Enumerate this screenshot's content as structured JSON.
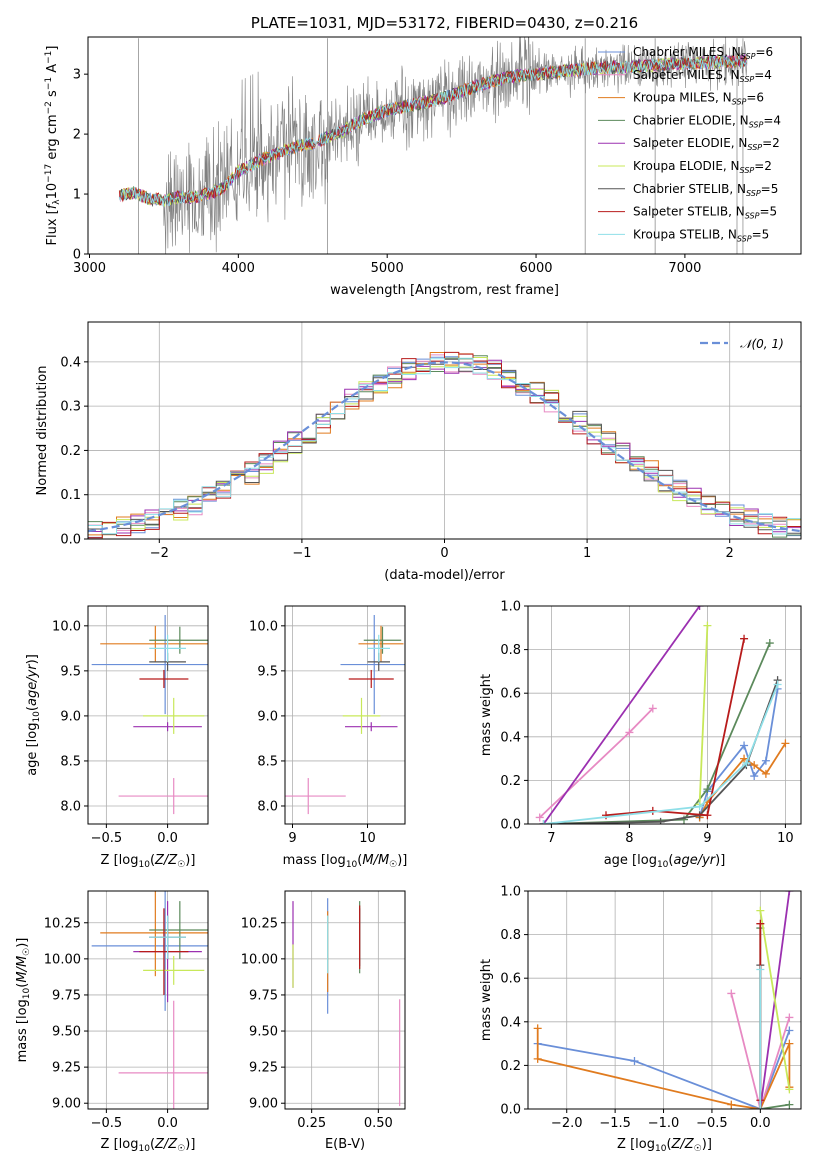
{
  "palette": {
    "Chabrier MILES": "#6a8fd8",
    "Salpeter MILES": "#e78ac3",
    "Kroupa MILES": "#e07b1f",
    "Chabrier ELODIE": "#5c8a5c",
    "Salpeter ELODIE": "#9b30b0",
    "Kroupa ELODIE": "#c8e85a",
    "Chabrier STELIB": "#555555",
    "Salpeter STELIB": "#b81b1b",
    "Kroupa STELIB": "#8fdfe8",
    "observed": "#808080",
    "normal": "#6a8fd8"
  },
  "chart_data": [
    {
      "id": "spectrum",
      "type": "line",
      "title": "PLATE=1031, MJD=53172, FIBERID=0430, z=0.216",
      "xlabel": "wavelength [Angstrom, rest frame]",
      "ylabel": "Flux [f_λ 10^-17 erg cm^-2 s^-1 A^-1]",
      "xlim": [
        2990,
        7780
      ],
      "ylim": [
        0,
        3.62
      ],
      "xticks": [
        3000,
        4000,
        5000,
        6000,
        7000
      ],
      "yticks": [
        0,
        1,
        2,
        3
      ],
      "legend_position": "upper right",
      "legend": [
        {
          "label": "Chabrier MILES, N",
          "sub": "SSP",
          "tail": "=6"
        },
        {
          "label": "Salpeter MILES, N",
          "sub": "SSP",
          "tail": "=4"
        },
        {
          "label": "Kroupa MILES, N",
          "sub": "SSP",
          "tail": "=6"
        },
        {
          "label": "Chabrier ELODIE, N",
          "sub": "SSP",
          "tail": "=4"
        },
        {
          "label": "Salpeter ELODIE, N",
          "sub": "SSP",
          "tail": "=2"
        },
        {
          "label": "Kroupa ELODIE, N",
          "sub": "SSP",
          "tail": "=2"
        },
        {
          "label": "Chabrier STELIB, N",
          "sub": "SSP",
          "tail": "=5"
        },
        {
          "label": "Salpeter STELIB, N",
          "sub": "SSP",
          "tail": "=5"
        },
        {
          "label": "Kroupa STELIB, N",
          "sub": "SSP",
          "tail": "=5"
        }
      ],
      "continuum": {
        "x": [
          3200,
          3300,
          3400,
          3500,
          3600,
          3700,
          3800,
          3900,
          4000,
          4100,
          4200,
          4300,
          4400,
          4500,
          4600,
          4700,
          4800,
          4900,
          5000,
          5200,
          5400,
          5600,
          5800,
          6000,
          6200,
          6400,
          6600,
          6800,
          7000,
          7200,
          7400
        ],
        "y": [
          0.98,
          1.02,
          0.92,
          0.9,
          0.95,
          0.95,
          1.0,
          1.1,
          1.38,
          1.5,
          1.62,
          1.72,
          1.8,
          1.85,
          1.95,
          2.05,
          2.2,
          2.3,
          2.4,
          2.5,
          2.62,
          2.8,
          2.95,
          3.0,
          3.05,
          3.1,
          3.12,
          3.15,
          3.18,
          3.2,
          3.22
        ]
      }
    },
    {
      "id": "residuals",
      "type": "line",
      "xlabel": "(data-model)/error",
      "ylabel": "Normed distribution",
      "xlim": [
        -2.5,
        2.5
      ],
      "ylim": [
        0,
        0.49
      ],
      "xticks": [
        -2,
        -1,
        0,
        1,
        2
      ],
      "yticks": [
        0.0,
        0.1,
        0.2,
        0.3,
        0.4
      ],
      "grid": true,
      "legend_position": "upper right",
      "normal_label": "𝒩(0, 1)",
      "normal_curve": "standard normal density"
    },
    {
      "id": "age-vs-Z",
      "type": "scatter",
      "xlabel": "Z [log10(Z/Z☉)]",
      "ylabel": "age [log10(age/yr)]",
      "xlim": [
        -0.65,
        0.33
      ],
      "ylim": [
        7.8,
        10.22
      ],
      "xticks": [
        -0.5,
        0.0
      ],
      "yticks": [
        8.0,
        8.5,
        9.0,
        9.5,
        10.0
      ],
      "grid": true,
      "points": [
        {
          "series": "Chabrier MILES",
          "x": -0.02,
          "y": 9.57,
          "xerr": 0.6,
          "yerr": 0.55
        },
        {
          "series": "Salpeter MILES",
          "x": 0.05,
          "y": 8.11,
          "xerr": 0.45,
          "yerr": 0.2
        },
        {
          "series": "Kroupa MILES",
          "x": -0.1,
          "y": 9.8,
          "xerr": 0.45,
          "yerr": 0.2
        },
        {
          "series": "Chabrier ELODIE",
          "x": 0.1,
          "y": 9.84,
          "xerr": 0.25,
          "yerr": 0.15
        },
        {
          "series": "Salpeter ELODIE",
          "x": 0.0,
          "y": 8.88,
          "xerr": 0.28,
          "yerr": 0.05
        },
        {
          "series": "Kroupa ELODIE",
          "x": 0.05,
          "y": 9.0,
          "xerr": 0.25,
          "yerr": 0.2
        },
        {
          "series": "Chabrier STELIB",
          "x": 0.0,
          "y": 9.6,
          "xerr": 0.15,
          "yerr": 0.1
        },
        {
          "series": "Salpeter STELIB",
          "x": -0.03,
          "y": 9.41,
          "xerr": 0.2,
          "yerr": 0.1
        },
        {
          "series": "Kroupa STELIB",
          "x": 0.0,
          "y": 9.75,
          "xerr": 0.15,
          "yerr": 0.15
        }
      ]
    },
    {
      "id": "age-vs-mass",
      "type": "scatter",
      "xlabel": "mass [log10(M/M☉)]",
      "xlim": [
        8.9,
        10.5
      ],
      "ylim": [
        7.8,
        10.22
      ],
      "xticks": [
        9,
        10
      ],
      "yticks": [
        8.0,
        8.5,
        9.0,
        9.5,
        10.0
      ],
      "grid": true,
      "points": [
        {
          "series": "Chabrier MILES",
          "x": 10.09,
          "y": 9.57,
          "xerr": 0.45,
          "yerr": 0.55
        },
        {
          "series": "Salpeter MILES",
          "x": 9.21,
          "y": 8.11,
          "xerr": 0.5,
          "yerr": 0.2
        },
        {
          "series": "Kroupa MILES",
          "x": 10.18,
          "y": 9.8,
          "xerr": 0.3,
          "yerr": 0.2
        },
        {
          "series": "Chabrier ELODIE",
          "x": 10.2,
          "y": 9.84,
          "xerr": 0.25,
          "yerr": 0.15
        },
        {
          "series": "Salpeter ELODIE",
          "x": 10.05,
          "y": 8.88,
          "xerr": 0.35,
          "yerr": 0.05
        },
        {
          "series": "Kroupa ELODIE",
          "x": 9.92,
          "y": 9.0,
          "xerr": 0.25,
          "yerr": 0.2
        },
        {
          "series": "Chabrier STELIB",
          "x": 10.15,
          "y": 9.6,
          "xerr": 0.15,
          "yerr": 0.1
        },
        {
          "series": "Salpeter STELIB",
          "x": 10.05,
          "y": 9.41,
          "xerr": 0.3,
          "yerr": 0.1
        },
        {
          "series": "Kroupa STELIB",
          "x": 10.15,
          "y": 9.75,
          "xerr": 0.15,
          "yerr": 0.15
        }
      ]
    },
    {
      "id": "weight-vs-age",
      "type": "line",
      "xlabel": "age [log10(age/yr)]",
      "ylabel": "mass weight",
      "xlim": [
        6.7,
        10.2
      ],
      "ylim": [
        0,
        1
      ],
      "xticks": [
        7,
        8,
        9,
        10
      ],
      "yticks": [
        0.0,
        0.2,
        0.4,
        0.6,
        0.8,
        1.0
      ],
      "grid": true,
      "series": [
        {
          "name": "Chabrier MILES",
          "x": [
            8.9,
            9.0,
            9.47,
            9.6,
            9.75,
            9.9
          ],
          "y": [
            0.03,
            0.15,
            0.36,
            0.22,
            0.29,
            0.62
          ]
        },
        {
          "name": "Salpeter MILES",
          "x": [
            6.85,
            8.0,
            8.3
          ],
          "y": [
            0.03,
            0.42,
            0.53
          ]
        },
        {
          "name": "Kroupa MILES",
          "x": [
            8.9,
            9.0,
            9.47,
            9.6,
            9.75,
            10.0
          ],
          "y": [
            0.03,
            0.1,
            0.3,
            0.27,
            0.23,
            0.37
          ]
        },
        {
          "name": "Chabrier ELODIE",
          "x": [
            6.9,
            8.7,
            9.0,
            9.8
          ],
          "y": [
            0.0,
            0.02,
            0.16,
            0.83
          ]
        },
        {
          "name": "Salpeter ELODIE",
          "x": [
            6.9,
            8.9
          ],
          "y": [
            0.0,
            1.0
          ]
        },
        {
          "name": "Kroupa ELODIE",
          "x": [
            8.9,
            9.0
          ],
          "y": [
            0.09,
            0.91
          ]
        },
        {
          "name": "Chabrier STELIB",
          "x": [
            6.9,
            8.4,
            8.9,
            9.5,
            9.9
          ],
          "y": [
            0.0,
            0.01,
            0.04,
            0.27,
            0.66
          ]
        },
        {
          "name": "Salpeter STELIB",
          "x": [
            7.7,
            8.3,
            9.0,
            9.47
          ],
          "y": [
            0.04,
            0.06,
            0.04,
            0.85
          ]
        },
        {
          "name": "Kroupa STELIB",
          "x": [
            6.9,
            8.9,
            9.5,
            9.9
          ],
          "y": [
            0.0,
            0.08,
            0.28,
            0.64
          ]
        }
      ]
    },
    {
      "id": "mass-vs-Z",
      "type": "scatter",
      "xlabel": "Z [log10(Z/Z☉)]",
      "ylabel": "mass [log10(M/M☉)]",
      "xlim": [
        -0.65,
        0.33
      ],
      "ylim": [
        8.96,
        10.47
      ],
      "xticks": [
        -0.5,
        0.0
      ],
      "yticks": [
        9.0,
        9.25,
        9.5,
        9.75,
        10.0,
        10.25
      ],
      "grid": true,
      "points": [
        {
          "series": "Chabrier MILES",
          "x": -0.02,
          "y": 10.09,
          "xerr": 0.6,
          "yerr": 0.45
        },
        {
          "series": "Salpeter MILES",
          "x": 0.05,
          "y": 9.21,
          "xerr": 0.45,
          "yerr": 0.5
        },
        {
          "series": "Kroupa MILES",
          "x": -0.1,
          "y": 10.18,
          "xerr": 0.45,
          "yerr": 0.3
        },
        {
          "series": "Chabrier ELODIE",
          "x": 0.1,
          "y": 10.2,
          "xerr": 0.25,
          "yerr": 0.2
        },
        {
          "series": "Salpeter ELODIE",
          "x": 0.0,
          "y": 10.05,
          "xerr": 0.28,
          "yerr": 0.35
        },
        {
          "series": "Kroupa ELODIE",
          "x": 0.05,
          "y": 9.92,
          "xerr": 0.25,
          "yerr": 0.1
        },
        {
          "series": "Chabrier STELIB",
          "x": 0.0,
          "y": 10.15,
          "xerr": 0.15,
          "yerr": 0.15
        },
        {
          "series": "Salpeter STELIB",
          "x": -0.03,
          "y": 10.05,
          "xerr": 0.2,
          "yerr": 0.3
        },
        {
          "series": "Kroupa STELIB",
          "x": 0.0,
          "y": 10.15,
          "xerr": 0.15,
          "yerr": 0.15
        }
      ]
    },
    {
      "id": "mass-vs-ebv",
      "type": "scatter",
      "xlabel": "E(B-V)",
      "xlim": [
        0.15,
        0.6
      ],
      "ylim": [
        8.96,
        10.47
      ],
      "xticks": [
        0.25,
        0.5
      ],
      "yticks": [
        9.0,
        9.25,
        9.5,
        9.75,
        10.0,
        10.25
      ],
      "grid": true,
      "points": [
        {
          "series": "Chabrier MILES",
          "x": 0.31,
          "y": 10.02,
          "yerr": 0.4
        },
        {
          "series": "Salpeter MILES",
          "x": 0.58,
          "y": 9.35,
          "yerr": 0.37
        },
        {
          "series": "Kroupa MILES",
          "x": 0.31,
          "y": 10.05,
          "yerr": 0.28
        },
        {
          "series": "Chabrier ELODIE",
          "x": 0.43,
          "y": 10.15,
          "yerr": 0.25
        },
        {
          "series": "Salpeter ELODIE",
          "x": 0.18,
          "y": 10.1,
          "yerr": 0.3
        },
        {
          "series": "Kroupa ELODIE",
          "x": 0.18,
          "y": 9.95,
          "yerr": 0.15
        },
        {
          "series": "Chabrier STELIB",
          "x": 0.43,
          "y": 10.15,
          "yerr": 0.2
        },
        {
          "series": "Salpeter STELIB",
          "x": 0.43,
          "y": 10.15,
          "yerr": 0.22
        },
        {
          "series": "Kroupa STELIB",
          "x": 0.31,
          "y": 10.1,
          "yerr": 0.2
        }
      ]
    },
    {
      "id": "weight-vs-Z",
      "type": "line",
      "xlabel": "Z [log10(Z/Z☉)]",
      "ylabel": "mass weight",
      "xlim": [
        -2.4,
        0.42
      ],
      "ylim": [
        0,
        1
      ],
      "xticks": [
        -2.0,
        -1.5,
        -1.0,
        -0.5,
        0.0
      ],
      "yticks": [
        0.0,
        0.2,
        0.4,
        0.6,
        0.8,
        1.0
      ],
      "grid": true,
      "series": [
        {
          "name": "Chabrier MILES",
          "x": [
            -2.3,
            -1.3,
            0.0,
            0.3
          ],
          "y": [
            0.3,
            0.22,
            0.0,
            0.36
          ]
        },
        {
          "name": "Salpeter MILES",
          "x": [
            -0.3,
            0.0,
            0.3
          ],
          "y": [
            0.53,
            0.0,
            0.42
          ]
        },
        {
          "name": "Kroupa MILES",
          "x": [
            -2.3,
            -2.3,
            -0.3,
            0.0,
            0.3,
            0.3
          ],
          "y": [
            0.37,
            0.23,
            0.02,
            0.0,
            0.3,
            0.1
          ]
        },
        {
          "name": "Chabrier ELODIE",
          "x": [
            0.0,
            0.0,
            0.3
          ],
          "y": [
            0.83,
            0.0,
            0.02
          ]
        },
        {
          "name": "Salpeter ELODIE",
          "x": [
            0.0,
            0.3
          ],
          "y": [
            0.0,
            1.0
          ]
        },
        {
          "name": "Kroupa ELODIE",
          "x": [
            0.0,
            0.3
          ],
          "y": [
            0.91,
            0.09
          ]
        },
        {
          "name": "Chabrier STELIB",
          "x": [
            0.0,
            0.0
          ],
          "y": [
            0.66,
            0.0
          ]
        },
        {
          "name": "Salpeter STELIB",
          "x": [
            0.0,
            0.0
          ],
          "y": [
            0.85,
            0.04
          ]
        },
        {
          "name": "Kroupa STELIB",
          "x": [
            0.0,
            0.0
          ],
          "y": [
            0.64,
            0.0
          ]
        }
      ]
    }
  ]
}
